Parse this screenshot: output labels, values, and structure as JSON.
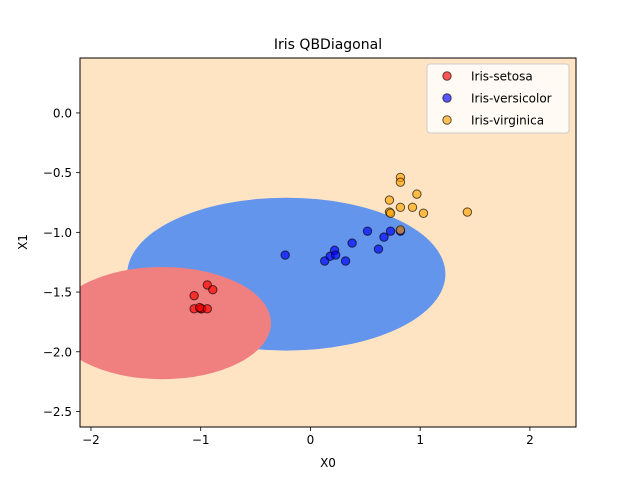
{
  "chart_data": {
    "type": "scatter",
    "title": "Iris QBDiagonal",
    "xlabel": "X0",
    "ylabel": "X1",
    "xlim": [
      -2.1,
      2.42
    ],
    "ylim": [
      -2.63,
      0.46
    ],
    "xticks": [
      -2,
      -1,
      0,
      1,
      2
    ],
    "yticks": [
      0.0,
      -0.5,
      -1.0,
      -1.5,
      -2.0,
      -2.5
    ],
    "xtick_labels": [
      "−2",
      "−1",
      "0",
      "1",
      "2"
    ],
    "ytick_labels": [
      "0.0",
      "−0.5",
      "−1.0",
      "−1.5",
      "−2.0",
      "−2.5"
    ],
    "legend_position": "top-right",
    "grid": false,
    "background_region_color": "#ffe4c4",
    "decision_regions": [
      {
        "class": "Iris-versicolor",
        "shape": "ellipse",
        "center": [
          -0.22,
          -1.35
        ],
        "radii": [
          1.45,
          0.64
        ],
        "color": "#6495ed"
      },
      {
        "class": "Iris-setosa",
        "shape": "ellipse",
        "center": [
          -1.35,
          -1.76
        ],
        "radii": [
          0.99,
          0.47
        ],
        "color": "#f08080"
      }
    ],
    "series": [
      {
        "name": "Iris-setosa",
        "color": "#ff0000",
        "points": [
          [
            -1.06,
            -1.53
          ],
          [
            -1.06,
            -1.64
          ],
          [
            -0.94,
            -1.44
          ],
          [
            -0.89,
            -1.48
          ],
          [
            -1.0,
            -1.64
          ],
          [
            -0.99,
            -1.64
          ],
          [
            -0.94,
            -1.64
          ],
          [
            -1.01,
            -1.63
          ]
        ]
      },
      {
        "name": "Iris-versicolor",
        "color": "#0000ff",
        "points": [
          [
            -0.23,
            -1.19
          ],
          [
            0.13,
            -1.24
          ],
          [
            0.18,
            -1.2
          ],
          [
            0.22,
            -1.15
          ],
          [
            0.23,
            -1.19
          ],
          [
            0.32,
            -1.24
          ],
          [
            0.38,
            -1.09
          ],
          [
            0.52,
            -0.99
          ],
          [
            0.62,
            -1.14
          ],
          [
            0.67,
            -1.04
          ],
          [
            0.73,
            -0.99
          ],
          [
            0.82,
            -0.99
          ]
        ]
      },
      {
        "name": "Iris-virginica",
        "color": "#ffa500",
        "points": [
          [
            0.82,
            -0.54
          ],
          [
            0.82,
            -0.58
          ],
          [
            0.97,
            -0.68
          ],
          [
            0.72,
            -0.73
          ],
          [
            0.72,
            -0.83
          ],
          [
            0.73,
            -0.84
          ],
          [
            0.82,
            -0.79
          ],
          [
            0.93,
            -0.79
          ],
          [
            1.03,
            -0.84
          ],
          [
            1.43,
            -0.83
          ],
          [
            0.82,
            -0.98
          ]
        ]
      }
    ]
  }
}
